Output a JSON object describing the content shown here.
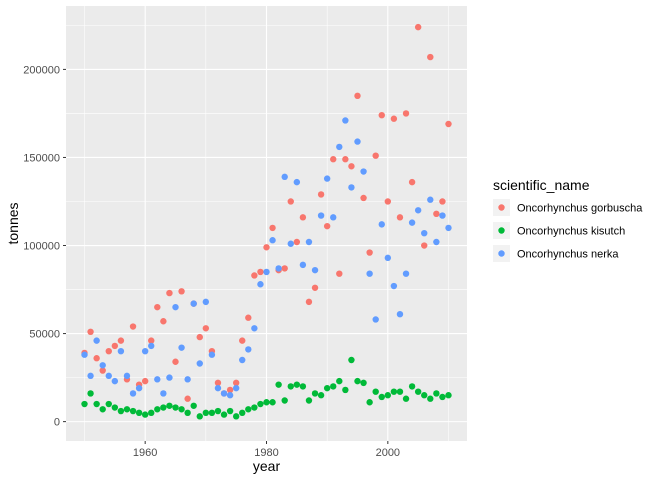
{
  "chart_data": {
    "type": "scatter",
    "xlabel": "year",
    "ylabel": "tonnes",
    "xlim": [
      1946.95,
      2013.05
    ],
    "ylim": [
      -11000,
      236000
    ],
    "x_ticks": [
      1960,
      1980,
      2000
    ],
    "x_tick_labels": [
      "1960",
      "1980",
      "2000"
    ],
    "y_ticks": [
      0,
      50000,
      100000,
      150000,
      200000
    ],
    "y_tick_labels": [
      "0",
      "50000",
      "100000",
      "150000",
      "200000"
    ],
    "grid": true,
    "legend": {
      "title": "scientific_name",
      "placement": "right"
    },
    "series": [
      {
        "name": "Oncorhynchus gorbuscha",
        "color": "#F8766D",
        "x": [
          1950,
          1951,
          1952,
          1953,
          1954,
          1955,
          1956,
          1957,
          1958,
          1959,
          1960,
          1961,
          1962,
          1963,
          1964,
          1965,
          1966,
          1967,
          1968,
          1969,
          1970,
          1971,
          1972,
          1973,
          1974,
          1975,
          1976,
          1977,
          1978,
          1979,
          1980,
          1981,
          1982,
          1983,
          1984,
          1985,
          1986,
          1987,
          1988,
          1989,
          1990,
          1991,
          1992,
          1993,
          1994,
          1995,
          1996,
          1997,
          1998,
          1999,
          2000,
          2001,
          2002,
          2003,
          2004,
          2005,
          2006,
          2007,
          2008,
          2009,
          2010
        ],
        "y": [
          39000,
          51000,
          36000,
          29000,
          40000,
          43000,
          46000,
          24000,
          54000,
          21000,
          23000,
          46000,
          65000,
          57000,
          73000,
          34000,
          74000,
          13000,
          67000,
          48000,
          53000,
          40000,
          22000,
          16000,
          18000,
          22000,
          46000,
          59000,
          83000,
          85000,
          99000,
          110000,
          86000,
          87000,
          125000,
          102000,
          116000,
          68000,
          76000,
          129000,
          111000,
          149000,
          84000,
          149000,
          145000,
          185000,
          127000,
          96000,
          151000,
          174000,
          125000,
          172000,
          116000,
          175000,
          136000,
          224000,
          100000,
          207000,
          118000,
          125000,
          169000
        ]
      },
      {
        "name": "Oncorhynchus kisutch",
        "color": "#00BA38",
        "x": [
          1950,
          1951,
          1952,
          1953,
          1954,
          1955,
          1956,
          1957,
          1958,
          1959,
          1960,
          1961,
          1962,
          1963,
          1964,
          1965,
          1966,
          1967,
          1968,
          1969,
          1970,
          1971,
          1972,
          1973,
          1974,
          1975,
          1976,
          1977,
          1978,
          1979,
          1980,
          1981,
          1982,
          1983,
          1984,
          1985,
          1986,
          1987,
          1988,
          1989,
          1990,
          1991,
          1992,
          1993,
          1994,
          1995,
          1996,
          1997,
          1998,
          1999,
          2000,
          2001,
          2002,
          2003,
          2004,
          2005,
          2006,
          2007,
          2008,
          2009,
          2010
        ],
        "y": [
          10000,
          16000,
          10000,
          7000,
          10000,
          8000,
          6000,
          7000,
          6000,
          5000,
          4000,
          5000,
          7000,
          8000,
          9000,
          8000,
          7000,
          5000,
          9000,
          3000,
          5000,
          5000,
          6000,
          4000,
          6000,
          3000,
          5000,
          7000,
          8000,
          10000,
          11000,
          11000,
          21000,
          12000,
          20000,
          21000,
          20000,
          12000,
          16000,
          15000,
          19000,
          20000,
          23000,
          18000,
          35000,
          23000,
          22000,
          11000,
          17000,
          14000,
          15000,
          17000,
          17000,
          13000,
          20000,
          17000,
          15000,
          13000,
          16000,
          14000,
          15000
        ]
      },
      {
        "name": "Oncorhynchus nerka",
        "color": "#619CFF",
        "x": [
          1950,
          1951,
          1952,
          1953,
          1954,
          1955,
          1956,
          1957,
          1958,
          1959,
          1960,
          1961,
          1962,
          1963,
          1964,
          1965,
          1966,
          1967,
          1968,
          1969,
          1970,
          1971,
          1972,
          1973,
          1974,
          1975,
          1976,
          1977,
          1978,
          1979,
          1980,
          1981,
          1982,
          1983,
          1984,
          1985,
          1986,
          1987,
          1988,
          1989,
          1990,
          1991,
          1992,
          1993,
          1994,
          1995,
          1996,
          1997,
          1998,
          1999,
          2000,
          2001,
          2002,
          2003,
          2004,
          2005,
          2006,
          2007,
          2008,
          2009,
          2010
        ],
        "y": [
          38000,
          26000,
          46000,
          32000,
          26000,
          23000,
          40000,
          26000,
          16000,
          19000,
          40000,
          43000,
          24000,
          16000,
          25000,
          65000,
          42000,
          24000,
          67000,
          33000,
          68000,
          38000,
          19000,
          16000,
          15000,
          19000,
          35000,
          41000,
          53000,
          78000,
          85000,
          103000,
          87000,
          139000,
          101000,
          136000,
          89000,
          102000,
          86000,
          117000,
          138000,
          116000,
          156000,
          171000,
          133000,
          159000,
          142000,
          84000,
          58000,
          112000,
          93000,
          77000,
          61000,
          84000,
          113000,
          120000,
          107000,
          126000,
          102000,
          117000,
          110000
        ]
      }
    ]
  }
}
